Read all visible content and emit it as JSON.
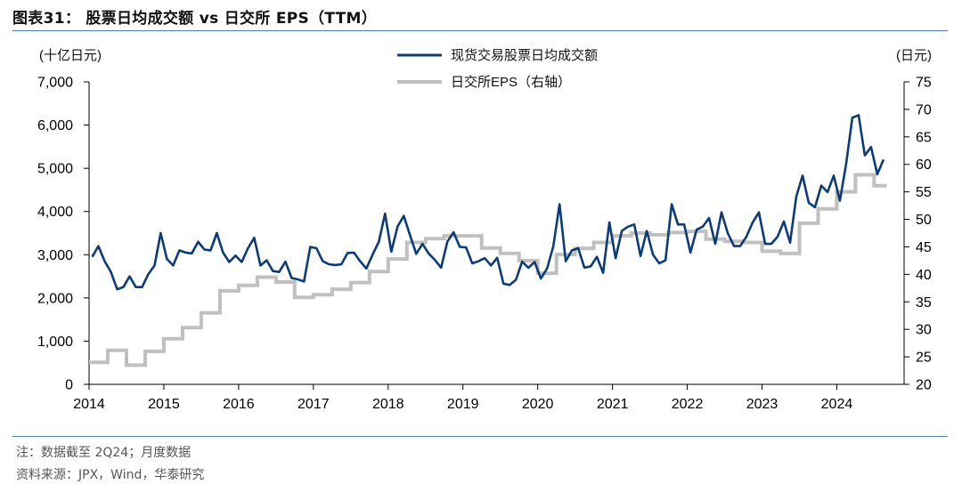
{
  "figure": {
    "title": "图表31： 股票日均成交额 vs 日交所 EPS（TTM）",
    "note": "注：数据截至 2Q24；月度数据",
    "source": "资料来源：JPX，Wind，华泰研究"
  },
  "chart_data": {
    "type": "line",
    "left_axis_unit": "(十亿日元)",
    "right_axis_unit": "(日元)",
    "left_ylim": [
      0,
      7000
    ],
    "left_ticks": [
      "0",
      "1,000",
      "2,000",
      "3,000",
      "4,000",
      "5,000",
      "6,000",
      "7,000"
    ],
    "right_ylim": [
      20,
      75
    ],
    "right_ticks": [
      "20",
      "25",
      "30",
      "35",
      "40",
      "45",
      "50",
      "55",
      "60",
      "65",
      "70",
      "75"
    ],
    "x_ticks": [
      "2014",
      "2015",
      "2016",
      "2017",
      "2018",
      "2019",
      "2020",
      "2021",
      "2022",
      "2023",
      "2024"
    ],
    "legend_position": "top-center",
    "grid": false,
    "series": [
      {
        "name": "现货交易股票日均成交额",
        "axis": "left",
        "color": "#0c3c78",
        "start": "2014-01",
        "frequency": "monthly",
        "values": [
          2950,
          3200,
          2850,
          2600,
          2200,
          2250,
          2500,
          2250,
          2250,
          2550,
          2750,
          3500,
          2900,
          2750,
          3100,
          3050,
          3030,
          3300,
          3120,
          3100,
          3500,
          3050,
          2830,
          2980,
          2830,
          3150,
          3390,
          2750,
          2870,
          2620,
          2600,
          2840,
          2460,
          2430,
          2380,
          3180,
          3150,
          2850,
          2780,
          2760,
          2780,
          3040,
          3050,
          2850,
          2680,
          3000,
          3300,
          3950,
          3070,
          3650,
          3900,
          3450,
          3020,
          3250,
          3030,
          2880,
          2700,
          3300,
          3520,
          3180,
          3170,
          2800,
          2850,
          2920,
          2750,
          2930,
          2330,
          2300,
          2420,
          2840,
          2700,
          2830,
          2450,
          2680,
          3200,
          4170,
          2850,
          3100,
          3150,
          2700,
          2730,
          2950,
          2580,
          3750,
          2920,
          3550,
          3650,
          3700,
          2970,
          3550,
          3000,
          2800,
          2870,
          4170,
          3700,
          3700,
          3050,
          3580,
          3650,
          3850,
          3250,
          3980,
          3500,
          3200,
          3200,
          3420,
          3750,
          3980,
          3250,
          3250,
          3420,
          3770,
          3280,
          4350,
          4830,
          4200,
          4100,
          4600,
          4450,
          4830,
          4250,
          5100,
          6170,
          6230,
          5300,
          5490,
          4860,
          5200
        ]
      },
      {
        "name": "日交所EPS（右轴）",
        "axis": "right",
        "color": "#c0c0c0",
        "start": "2014-01",
        "frequency": "monthly",
        "step_values": [
          24.0,
          24.0,
          24.0,
          26.2,
          26.2,
          26.2,
          23.5,
          23.5,
          23.5,
          26.0,
          26.0,
          26.0,
          28.3,
          28.3,
          28.3,
          30.3,
          30.3,
          30.3,
          33.0,
          33.0,
          33.0,
          37.0,
          37.0,
          37.0,
          38.0,
          38.0,
          38.0,
          39.5,
          39.5,
          39.5,
          38.6,
          38.6,
          38.6,
          35.8,
          35.8,
          35.8,
          36.3,
          36.3,
          36.3,
          37.3,
          37.3,
          37.3,
          38.5,
          38.5,
          38.5,
          40.5,
          40.5,
          40.5,
          42.8,
          42.8,
          42.8,
          45.8,
          45.8,
          45.8,
          46.5,
          46.5,
          46.5,
          47.0,
          47.0,
          47.0,
          47.0,
          47.0,
          47.0,
          44.8,
          44.8,
          44.8,
          43.8,
          43.8,
          43.8,
          42.5,
          42.5,
          42.5,
          40.2,
          40.2,
          40.2,
          43.6,
          43.6,
          43.6,
          44.7,
          44.7,
          44.7,
          45.8,
          45.8,
          45.8,
          47.0,
          47.0,
          47.0,
          47.5,
          47.5,
          47.5,
          47.2,
          47.2,
          47.2,
          47.6,
          47.6,
          47.6,
          47.8,
          47.8,
          47.8,
          46.4,
          46.4,
          46.4,
          46.0,
          46.0,
          46.0,
          45.8,
          45.8,
          45.8,
          44.2,
          44.2,
          44.2,
          43.8,
          43.8,
          43.8,
          49.3,
          49.3,
          49.3,
          51.9,
          51.9,
          51.9,
          55.0,
          55.0,
          55.0,
          58.1,
          58.1,
          58.1,
          56.1,
          56.1
        ]
      }
    ]
  }
}
